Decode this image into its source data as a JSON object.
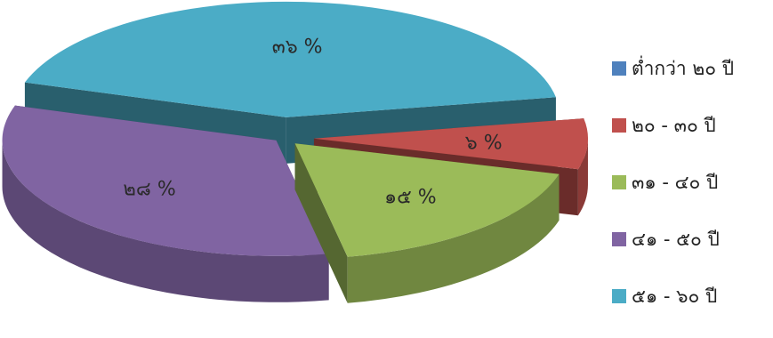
{
  "chart_data": {
    "type": "pie",
    "title": "",
    "legend_position": "right",
    "slices": [
      {
        "label": "ต่ำกว่า ๒๐ ปี",
        "value": 0,
        "value_label": "",
        "color": "#4F81BD"
      },
      {
        "label": "๒๐ - ๓๐ ปี",
        "value": 6,
        "value_label": "๖ %",
        "color": "#C0504D"
      },
      {
        "label": "๓๑ - ๔๐ ปี",
        "value": 15,
        "value_label": "๑๕ %",
        "color": "#9BBB59"
      },
      {
        "label": "๔๑ - ๕๐ ปี",
        "value": 28,
        "value_label": "๒๘ %",
        "color": "#8064A2"
      },
      {
        "label": "๕๑ - ๖๐ ปี",
        "value": 36,
        "value_label": "๓๖ %",
        "color": "#4BACC6"
      }
    ]
  }
}
